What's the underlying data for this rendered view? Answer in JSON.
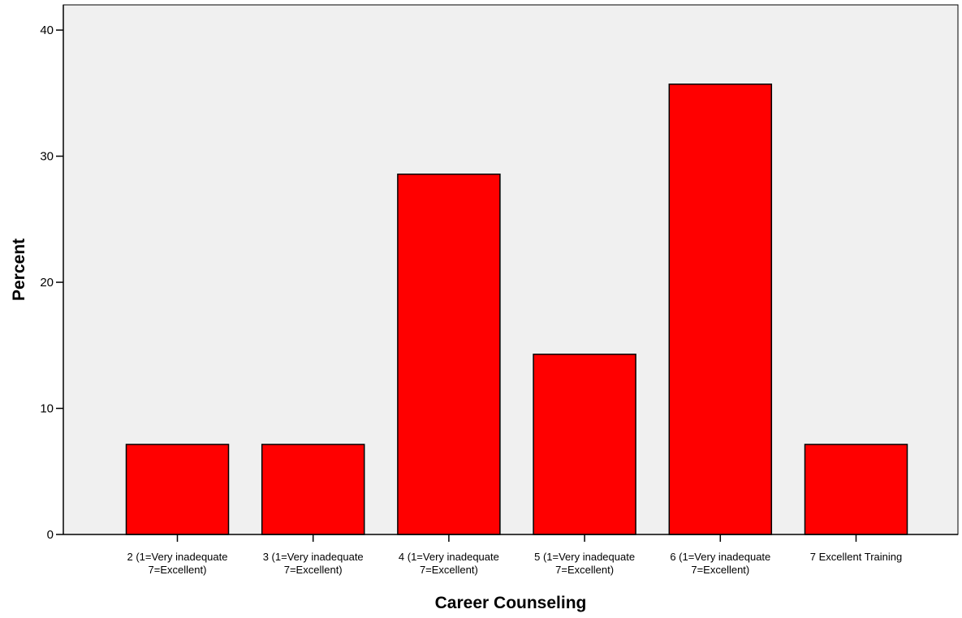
{
  "chart_data": {
    "type": "bar",
    "title": "",
    "xlabel": "Career Counseling",
    "ylabel": "Percent",
    "categories": [
      [
        "2 (1=Very inadequate",
        "7=Excellent)"
      ],
      [
        "3 (1=Very inadequate",
        "7=Excellent)"
      ],
      [
        "4 (1=Very inadequate",
        "7=Excellent)"
      ],
      [
        "5 (1=Very inadequate",
        "7=Excellent)"
      ],
      [
        "6 (1=Very inadequate",
        "7=Excellent)"
      ],
      [
        "7 Excellent Training"
      ]
    ],
    "values": [
      7.14,
      7.14,
      28.57,
      14.29,
      35.71,
      7.14
    ],
    "ylim": [
      0,
      42
    ],
    "yticks": [
      0,
      10,
      20,
      30,
      40
    ],
    "grid": false,
    "colors": {
      "bar_fill": "#ff0000",
      "bar_stroke": "#000000",
      "plot_background": "#f0f0f0"
    }
  }
}
